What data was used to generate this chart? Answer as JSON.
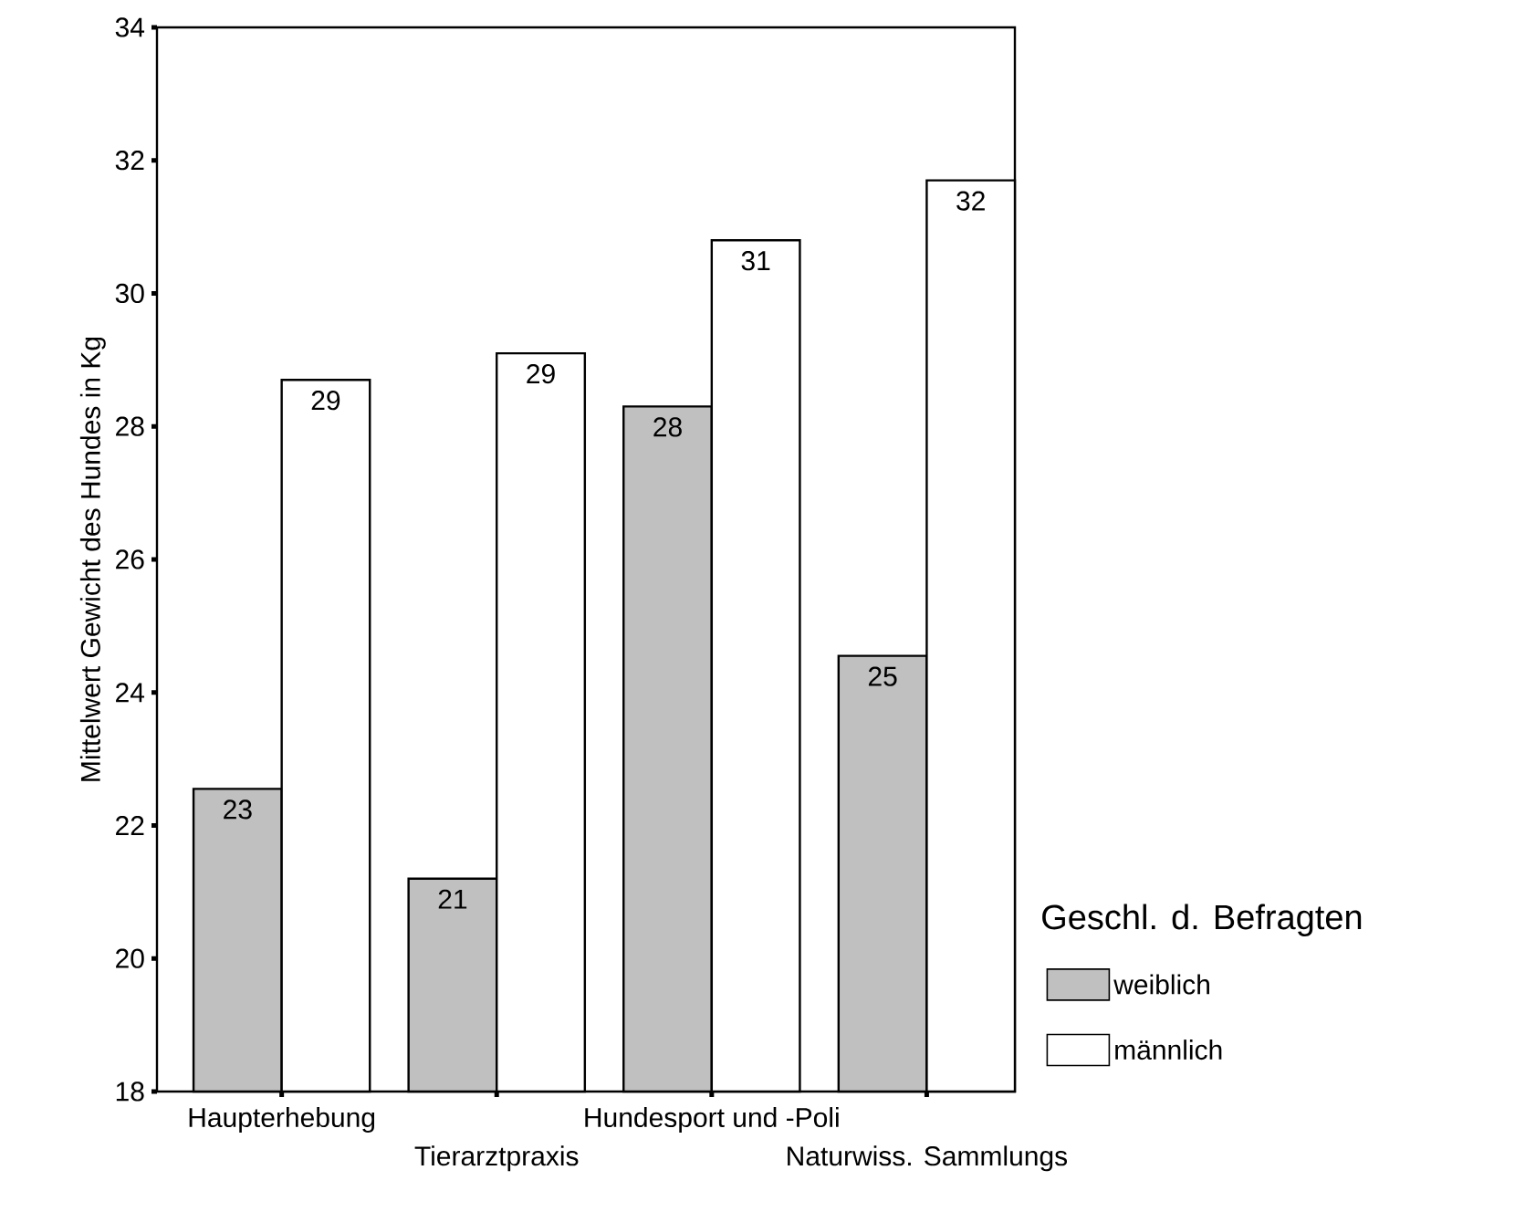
{
  "chart_data": {
    "type": "bar",
    "ylabel": "Mittelwert Gewicht des Hundes in Kg",
    "legend_title": "Geschl. d. Befragten",
    "categories": [
      "Haupterhebung",
      "Tierarztpraxis",
      "Hundesport und -Poli",
      "Naturwiss. Sammlungs"
    ],
    "series": [
      {
        "name": "weiblich",
        "color": "#c0c0c0",
        "values": [
          22.55,
          21.2,
          28.3,
          24.55
        ],
        "value_labels": [
          "23",
          "21",
          "28",
          "25"
        ]
      },
      {
        "name": "männlich",
        "color": "#ffffff",
        "values": [
          28.7,
          29.1,
          30.8,
          31.7
        ],
        "value_labels": [
          "29",
          "29",
          "31",
          "32"
        ]
      }
    ],
    "ylim": [
      18,
      34
    ],
    "yticks": [
      18,
      20,
      22,
      24,
      26,
      28,
      30,
      32,
      34
    ],
    "legend": "right"
  }
}
